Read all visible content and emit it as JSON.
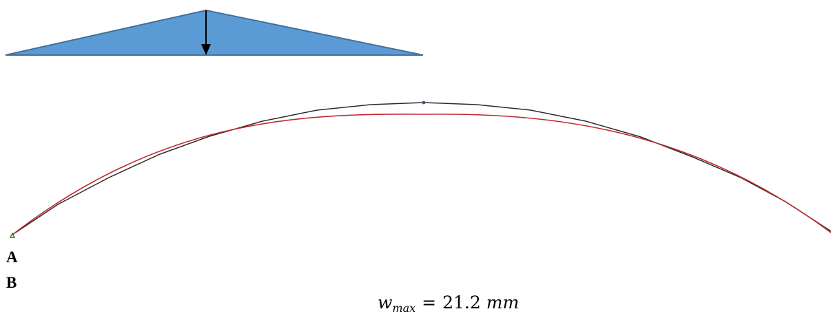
{
  "labels": {
    "support_a": "A",
    "support_b": "B"
  },
  "result": {
    "variable": "w",
    "subscript": "max",
    "operator": "=",
    "value": "21.2",
    "unit": "mm"
  },
  "colors": {
    "load_fill": "#5b9bd5",
    "load_stroke": "#41719c",
    "reference_shape": "#2b2b2b",
    "deformed_shape": "#c0282d",
    "support_marker": "#2e7d32",
    "apex_marker": "#7b3a8c"
  }
}
